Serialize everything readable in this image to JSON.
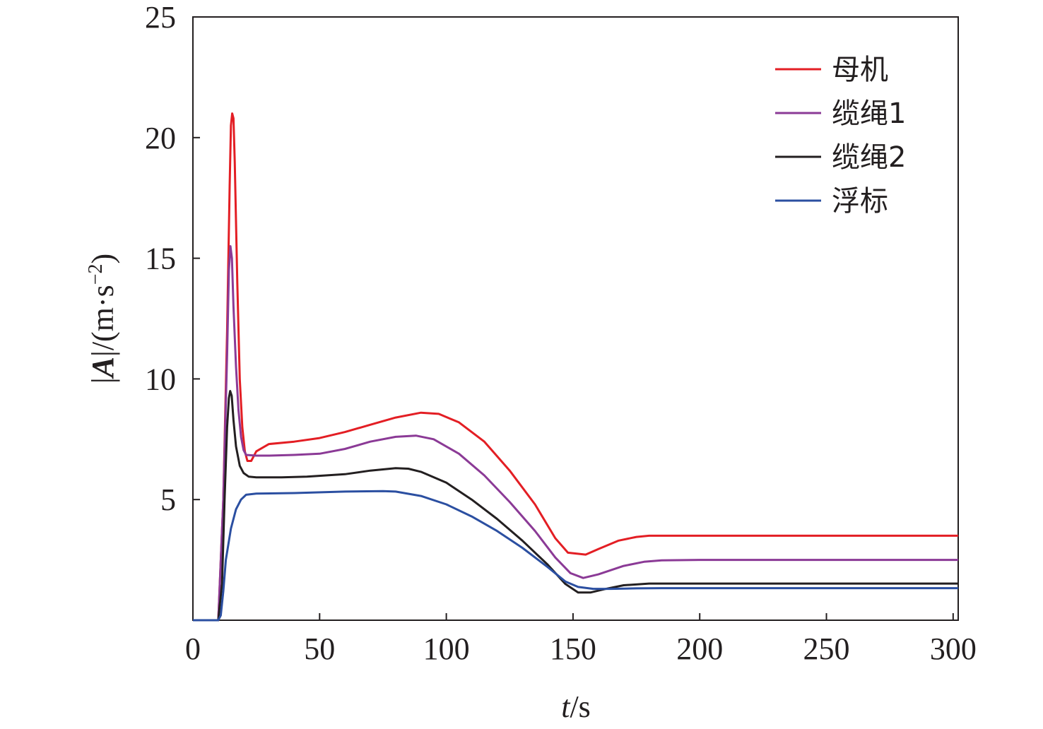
{
  "chart_data": {
    "type": "line",
    "xlabel": {
      "var": "t",
      "unit": "/s"
    },
    "ylabel": {
      "pre": "|",
      "var": "A",
      "mid": "|/(m·s",
      "sup": "−2",
      "post": ")"
    },
    "xlim": [
      0,
      302
    ],
    "ylim": [
      0,
      25
    ],
    "xticks": [
      0,
      50,
      100,
      150,
      200,
      250,
      300
    ],
    "yticks": [
      5,
      10,
      15,
      20,
      25
    ],
    "legend_position": "top-right",
    "series": [
      {
        "name": "母机",
        "color": "#e31e24",
        "points": [
          [
            0,
            0
          ],
          [
            10,
            0
          ],
          [
            12,
            5
          ],
          [
            13.5,
            12
          ],
          [
            14.5,
            18
          ],
          [
            15,
            20.5
          ],
          [
            15.5,
            21
          ],
          [
            16,
            20.8
          ],
          [
            16.5,
            19
          ],
          [
            17.5,
            14
          ],
          [
            18.5,
            10
          ],
          [
            19.5,
            8
          ],
          [
            20.5,
            7
          ],
          [
            21.5,
            6.6
          ],
          [
            23,
            6.6
          ],
          [
            25,
            7
          ],
          [
            30,
            7.3
          ],
          [
            40,
            7.4
          ],
          [
            50,
            7.55
          ],
          [
            60,
            7.8
          ],
          [
            70,
            8.1
          ],
          [
            80,
            8.4
          ],
          [
            90,
            8.6
          ],
          [
            97,
            8.55
          ],
          [
            105,
            8.2
          ],
          [
            115,
            7.4
          ],
          [
            125,
            6.2
          ],
          [
            135,
            4.8
          ],
          [
            143,
            3.4
          ],
          [
            148,
            2.8
          ],
          [
            155,
            2.72
          ],
          [
            160,
            2.95
          ],
          [
            168,
            3.3
          ],
          [
            175,
            3.45
          ],
          [
            180,
            3.5
          ],
          [
            200,
            3.5
          ],
          [
            250,
            3.5
          ],
          [
            302,
            3.5
          ]
        ]
      },
      {
        "name": "缆绳1",
        "color": "#8b3a96",
        "points": [
          [
            0,
            0
          ],
          [
            10,
            0
          ],
          [
            12,
            5
          ],
          [
            13.5,
            11
          ],
          [
            14.2,
            14.5
          ],
          [
            14.8,
            15.5
          ],
          [
            15.4,
            15
          ],
          [
            16,
            13
          ],
          [
            17,
            10.5
          ],
          [
            18,
            8.7
          ],
          [
            19,
            7.6
          ],
          [
            20,
            7.05
          ],
          [
            21,
            6.85
          ],
          [
            25,
            6.82
          ],
          [
            30,
            6.82
          ],
          [
            40,
            6.85
          ],
          [
            50,
            6.9
          ],
          [
            60,
            7.1
          ],
          [
            70,
            7.4
          ],
          [
            80,
            7.6
          ],
          [
            88,
            7.65
          ],
          [
            95,
            7.5
          ],
          [
            105,
            6.9
          ],
          [
            115,
            6.0
          ],
          [
            125,
            4.9
          ],
          [
            135,
            3.7
          ],
          [
            143,
            2.6
          ],
          [
            149,
            1.95
          ],
          [
            154,
            1.75
          ],
          [
            160,
            1.9
          ],
          [
            170,
            2.25
          ],
          [
            178,
            2.42
          ],
          [
            185,
            2.48
          ],
          [
            200,
            2.5
          ],
          [
            250,
            2.5
          ],
          [
            302,
            2.5
          ]
        ]
      },
      {
        "name": "缆绳2",
        "color": "#231f20",
        "points": [
          [
            0,
            0
          ],
          [
            10,
            0
          ],
          [
            11.5,
            1.5
          ],
          [
            12.5,
            5
          ],
          [
            13.5,
            8
          ],
          [
            14.2,
            9.2
          ],
          [
            14.7,
            9.5
          ],
          [
            15.3,
            9.3
          ],
          [
            16,
            8.3
          ],
          [
            17,
            7.2
          ],
          [
            18.5,
            6.4
          ],
          [
            20,
            6.1
          ],
          [
            22,
            5.95
          ],
          [
            25,
            5.92
          ],
          [
            35,
            5.92
          ],
          [
            45,
            5.95
          ],
          [
            60,
            6.05
          ],
          [
            70,
            6.2
          ],
          [
            80,
            6.3
          ],
          [
            85,
            6.28
          ],
          [
            90,
            6.15
          ],
          [
            100,
            5.7
          ],
          [
            110,
            5.0
          ],
          [
            120,
            4.2
          ],
          [
            130,
            3.3
          ],
          [
            140,
            2.3
          ],
          [
            147,
            1.5
          ],
          [
            152,
            1.15
          ],
          [
            157,
            1.15
          ],
          [
            163,
            1.3
          ],
          [
            170,
            1.45
          ],
          [
            180,
            1.52
          ],
          [
            200,
            1.52
          ],
          [
            250,
            1.52
          ],
          [
            302,
            1.52
          ]
        ]
      },
      {
        "name": "浮标",
        "color": "#2b4fa1",
        "points": [
          [
            0,
            0
          ],
          [
            10,
            0
          ],
          [
            11,
            0.2
          ],
          [
            12,
            1.2
          ],
          [
            13,
            2.5
          ],
          [
            15,
            3.8
          ],
          [
            17,
            4.6
          ],
          [
            19,
            5.0
          ],
          [
            21,
            5.2
          ],
          [
            25,
            5.25
          ],
          [
            40,
            5.27
          ],
          [
            60,
            5.33
          ],
          [
            75,
            5.35
          ],
          [
            80,
            5.33
          ],
          [
            90,
            5.15
          ],
          [
            100,
            4.8
          ],
          [
            110,
            4.3
          ],
          [
            120,
            3.7
          ],
          [
            130,
            3.0
          ],
          [
            140,
            2.2
          ],
          [
            147,
            1.6
          ],
          [
            152,
            1.38
          ],
          [
            158,
            1.3
          ],
          [
            165,
            1.3
          ],
          [
            175,
            1.32
          ],
          [
            185,
            1.33
          ],
          [
            200,
            1.33
          ],
          [
            250,
            1.33
          ],
          [
            302,
            1.33
          ]
        ]
      }
    ]
  }
}
